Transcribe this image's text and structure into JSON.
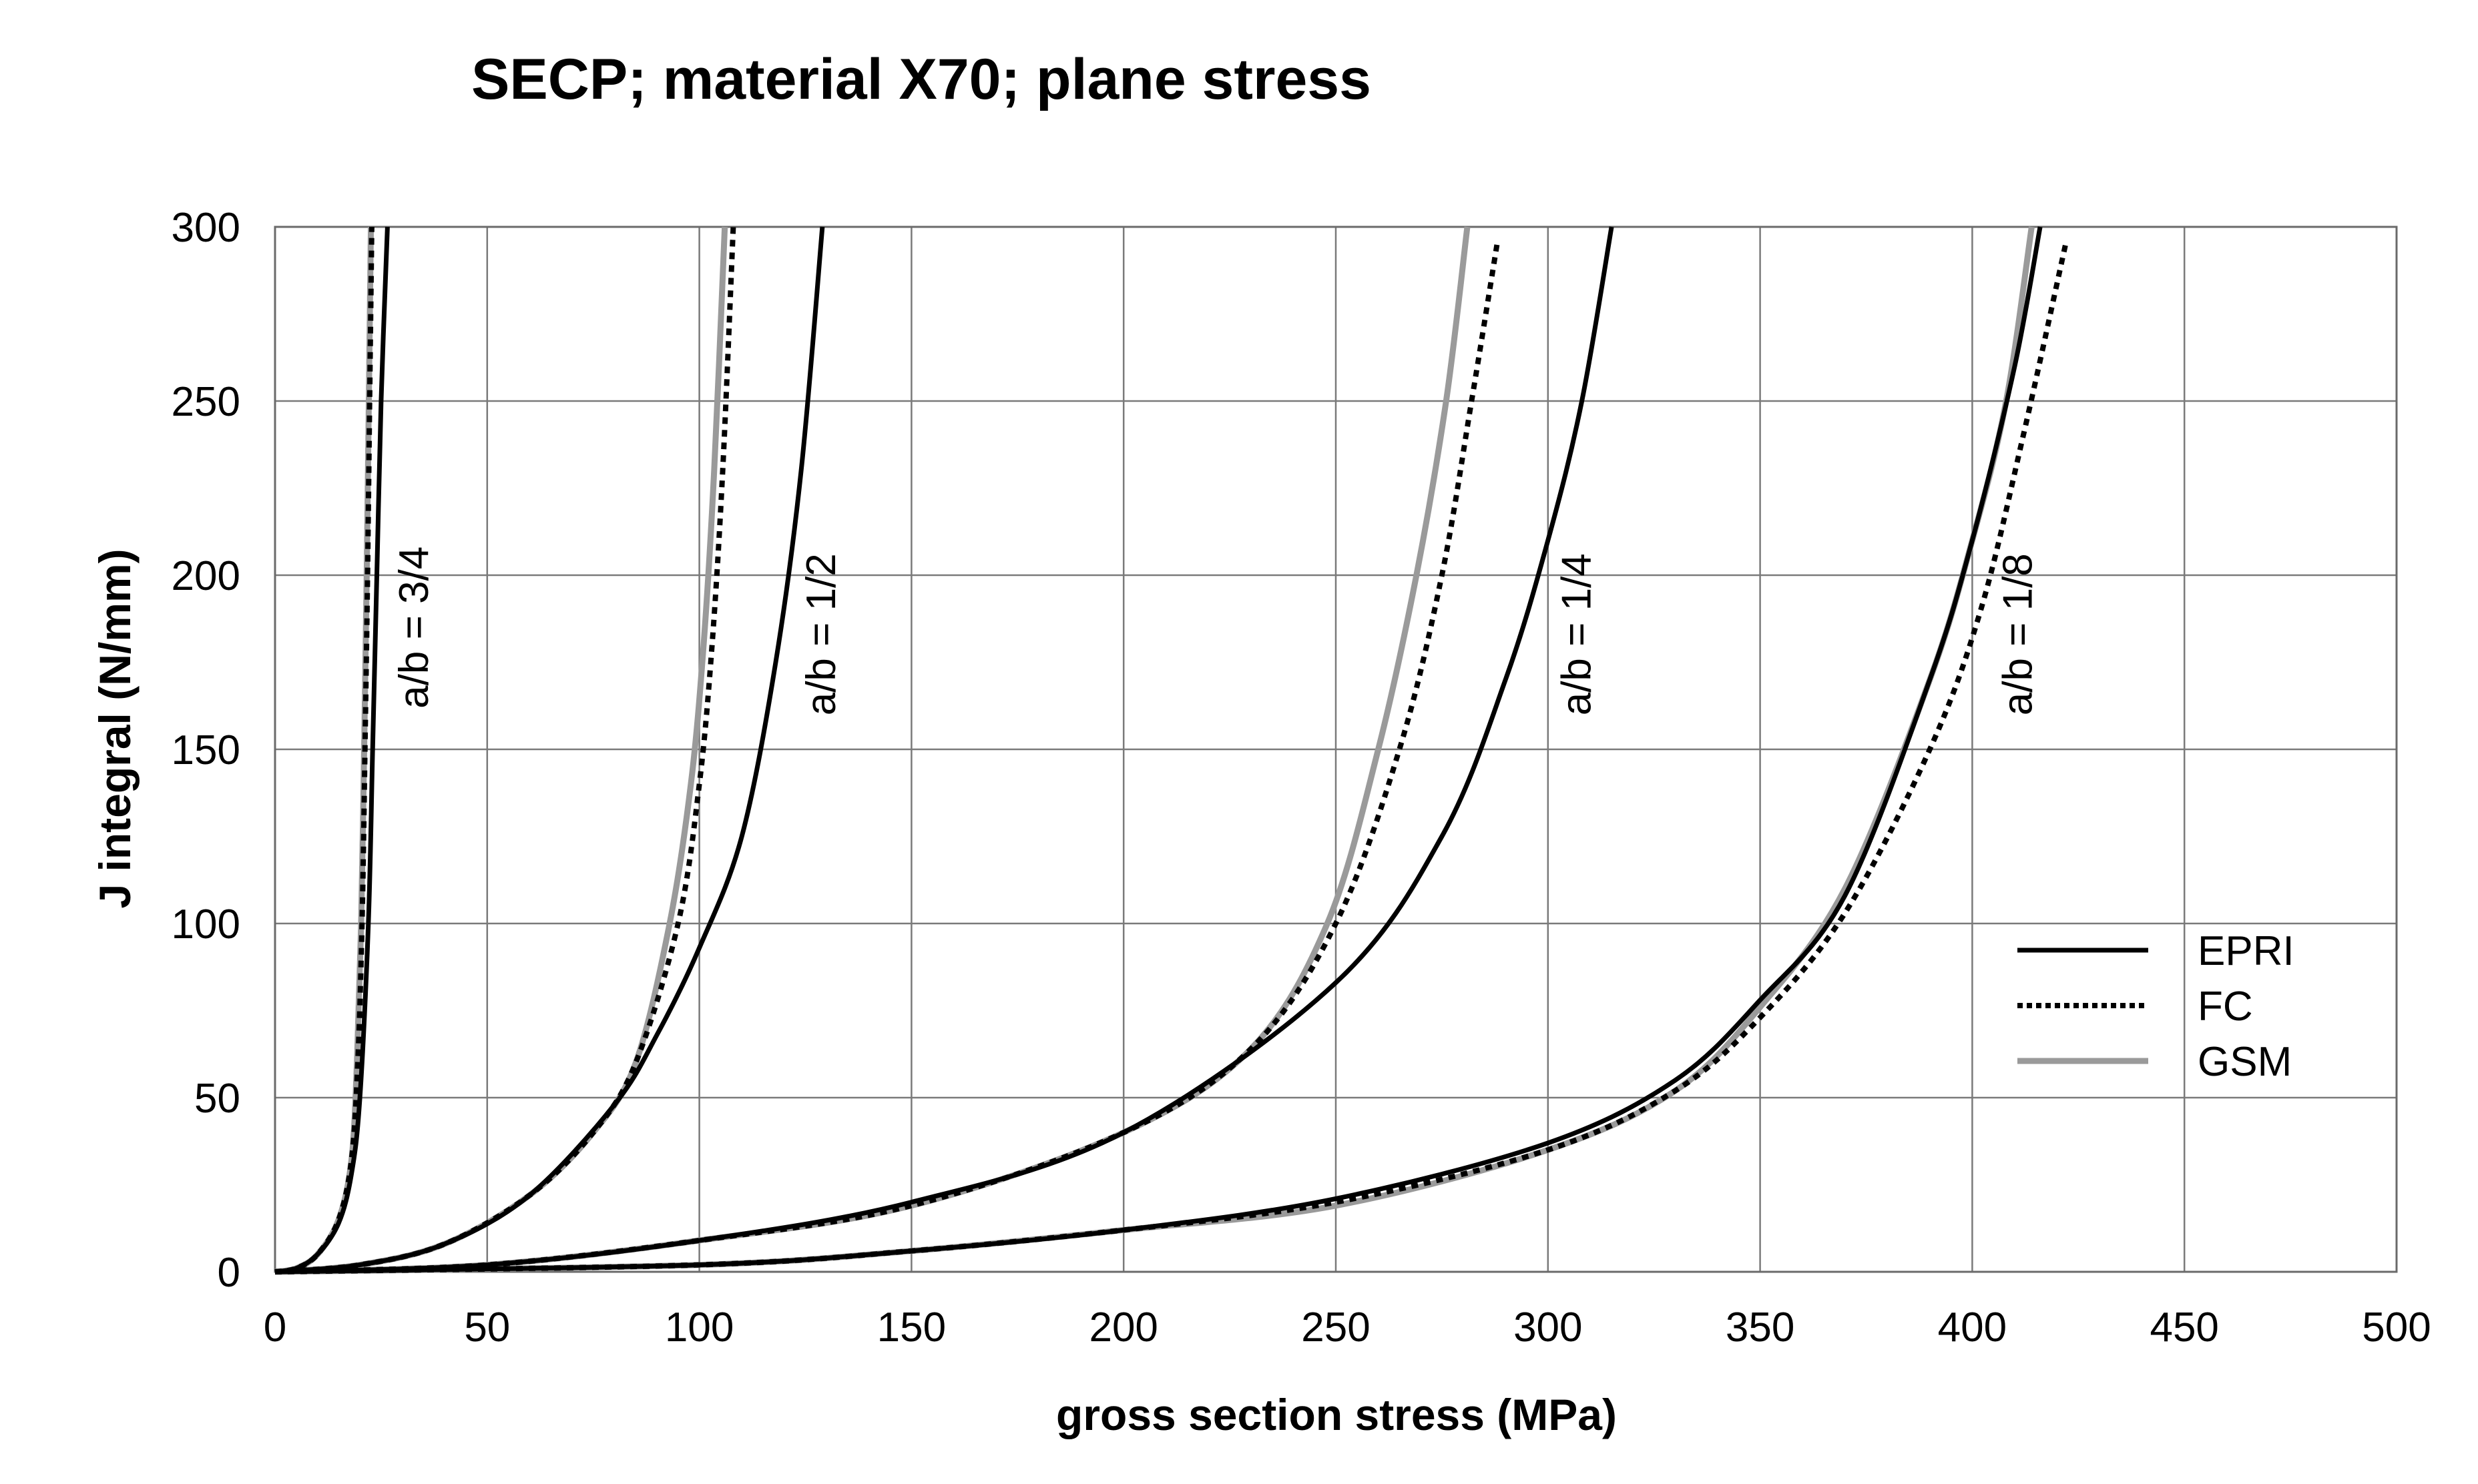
{
  "chart_data": {
    "type": "line",
    "title": "SECP; material X70; plane stress",
    "xlabel": "gross section stress (MPa)",
    "ylabel": "J integral (N/mm)",
    "xlim": [
      0,
      500
    ],
    "ylim": [
      0,
      300
    ],
    "xticks": [
      "0",
      "50",
      "100",
      "150",
      "200",
      "250",
      "300",
      "350",
      "400",
      "450",
      "500"
    ],
    "yticks": [
      "0",
      "50",
      "100",
      "150",
      "200",
      "250",
      "300"
    ],
    "grid": true,
    "legend_position": "right",
    "legend": [
      {
        "name": "EPRI",
        "style": "solid",
        "color": "#000000"
      },
      {
        "name": "FC",
        "style": "dotted",
        "color": "#000000"
      },
      {
        "name": "GSM",
        "style": "solid",
        "color": "#9a9a9a"
      }
    ],
    "annotations": [
      {
        "text": "a/b = 3/4",
        "x": 36,
        "y": 185
      },
      {
        "text": "a/b = 1/2",
        "x": 132,
        "y": 183
      },
      {
        "text": "a/b = 1/4",
        "x": 310,
        "y": 183
      },
      {
        "text": "a/b = 1/8",
        "x": 414,
        "y": 183
      }
    ],
    "series": [
      {
        "name": "EPRI",
        "group": "a/b = 3/4",
        "points": [
          [
            0,
            0
          ],
          [
            5,
            1
          ],
          [
            10,
            5
          ],
          [
            15,
            14
          ],
          [
            18,
            28
          ],
          [
            20,
            50
          ],
          [
            22,
            100
          ],
          [
            23,
            150
          ],
          [
            24,
            200
          ],
          [
            25,
            250
          ],
          [
            26.5,
            300
          ]
        ]
      },
      {
        "name": "FC",
        "group": "a/b = 3/4",
        "points": [
          [
            0,
            0
          ],
          [
            5,
            1
          ],
          [
            10,
            5
          ],
          [
            15,
            15
          ],
          [
            18,
            32
          ],
          [
            19.5,
            60
          ],
          [
            20.5,
            100
          ],
          [
            21.2,
            150
          ],
          [
            21.8,
            200
          ],
          [
            22.3,
            250
          ],
          [
            22.8,
            300
          ]
        ]
      },
      {
        "name": "GSM",
        "group": "a/b = 3/4",
        "points": [
          [
            0,
            0
          ],
          [
            5,
            1
          ],
          [
            10,
            5
          ],
          [
            15,
            15
          ],
          [
            18,
            32
          ],
          [
            19.3,
            60
          ],
          [
            20.3,
            100
          ],
          [
            21,
            150
          ],
          [
            21.6,
            200
          ],
          [
            22.1,
            250
          ],
          [
            22.6,
            300
          ]
        ]
      },
      {
        "name": "EPRI",
        "group": "a/b = 1/2",
        "points": [
          [
            0,
            0
          ],
          [
            20,
            2
          ],
          [
            40,
            8
          ],
          [
            60,
            22
          ],
          [
            80,
            48
          ],
          [
            90,
            68
          ],
          [
            100,
            93
          ],
          [
            110,
            125
          ],
          [
            118,
            175
          ],
          [
            124,
            230
          ],
          [
            129,
            300
          ]
        ]
      },
      {
        "name": "FC",
        "group": "a/b = 1/2",
        "points": [
          [
            0,
            0
          ],
          [
            20,
            2
          ],
          [
            40,
            8
          ],
          [
            60,
            22
          ],
          [
            75,
            40
          ],
          [
            85,
            60
          ],
          [
            95,
            100
          ],
          [
            100,
            140
          ],
          [
            103,
            180
          ],
          [
            105.5,
            230
          ],
          [
            108,
            300
          ]
        ]
      },
      {
        "name": "GSM",
        "group": "a/b = 1/2",
        "points": [
          [
            0,
            0
          ],
          [
            20,
            2
          ],
          [
            40,
            8
          ],
          [
            60,
            22
          ],
          [
            75,
            40
          ],
          [
            85,
            60
          ],
          [
            93,
            100
          ],
          [
            98,
            140
          ],
          [
            101,
            180
          ],
          [
            103.5,
            230
          ],
          [
            106,
            300
          ]
        ]
      },
      {
        "name": "EPRI",
        "group": "a/b = 1/4",
        "points": [
          [
            0,
            0
          ],
          [
            50,
            2
          ],
          [
            100,
            9
          ],
          [
            150,
            20
          ],
          [
            200,
            40
          ],
          [
            250,
            83
          ],
          [
            275,
            125
          ],
          [
            290,
            170
          ],
          [
            300,
            210
          ],
          [
            308,
            250
          ],
          [
            315,
            300
          ]
        ]
      },
      {
        "name": "FC",
        "group": "a/b = 1/4",
        "points": [
          [
            0,
            0
          ],
          [
            50,
            2
          ],
          [
            100,
            9
          ],
          [
            150,
            19
          ],
          [
            200,
            40
          ],
          [
            230,
            64
          ],
          [
            250,
            100
          ],
          [
            265,
            150
          ],
          [
            275,
            200
          ],
          [
            282,
            250
          ],
          [
            288,
            295
          ]
        ]
      },
      {
        "name": "GSM",
        "group": "a/b = 1/4",
        "points": [
          [
            0,
            0
          ],
          [
            50,
            2
          ],
          [
            100,
            9
          ],
          [
            150,
            19
          ],
          [
            200,
            40
          ],
          [
            230,
            64
          ],
          [
            248,
            100
          ],
          [
            260,
            150
          ],
          [
            269,
            200
          ],
          [
            276,
            250
          ],
          [
            281,
            300
          ]
        ]
      },
      {
        "name": "EPRI",
        "group": "a/b = 1/8",
        "points": [
          [
            0,
            0
          ],
          [
            100,
            2
          ],
          [
            150,
            6
          ],
          [
            200,
            12
          ],
          [
            250,
            21
          ],
          [
            300,
            37
          ],
          [
            330,
            55
          ],
          [
            350,
            78
          ],
          [
            370,
            108
          ],
          [
            390,
            170
          ],
          [
            400,
            210
          ],
          [
            410,
            260
          ],
          [
            416,
            300
          ]
        ]
      },
      {
        "name": "FC",
        "group": "a/b = 1/8",
        "points": [
          [
            0,
            0
          ],
          [
            100,
            2
          ],
          [
            150,
            6
          ],
          [
            200,
            12
          ],
          [
            250,
            20
          ],
          [
            300,
            35
          ],
          [
            330,
            52
          ],
          [
            350,
            73
          ],
          [
            370,
            103
          ],
          [
            390,
            150
          ],
          [
            402,
            190
          ],
          [
            412,
            240
          ],
          [
            422,
            295
          ]
        ]
      },
      {
        "name": "GSM",
        "group": "a/b = 1/8",
        "points": [
          [
            0,
            0
          ],
          [
            100,
            2
          ],
          [
            150,
            6
          ],
          [
            200,
            12
          ],
          [
            250,
            19
          ],
          [
            300,
            35
          ],
          [
            330,
            52
          ],
          [
            350,
            76
          ],
          [
            370,
            110
          ],
          [
            390,
            170
          ],
          [
            400,
            210
          ],
          [
            408,
            250
          ],
          [
            414,
            300
          ]
        ]
      }
    ]
  }
}
